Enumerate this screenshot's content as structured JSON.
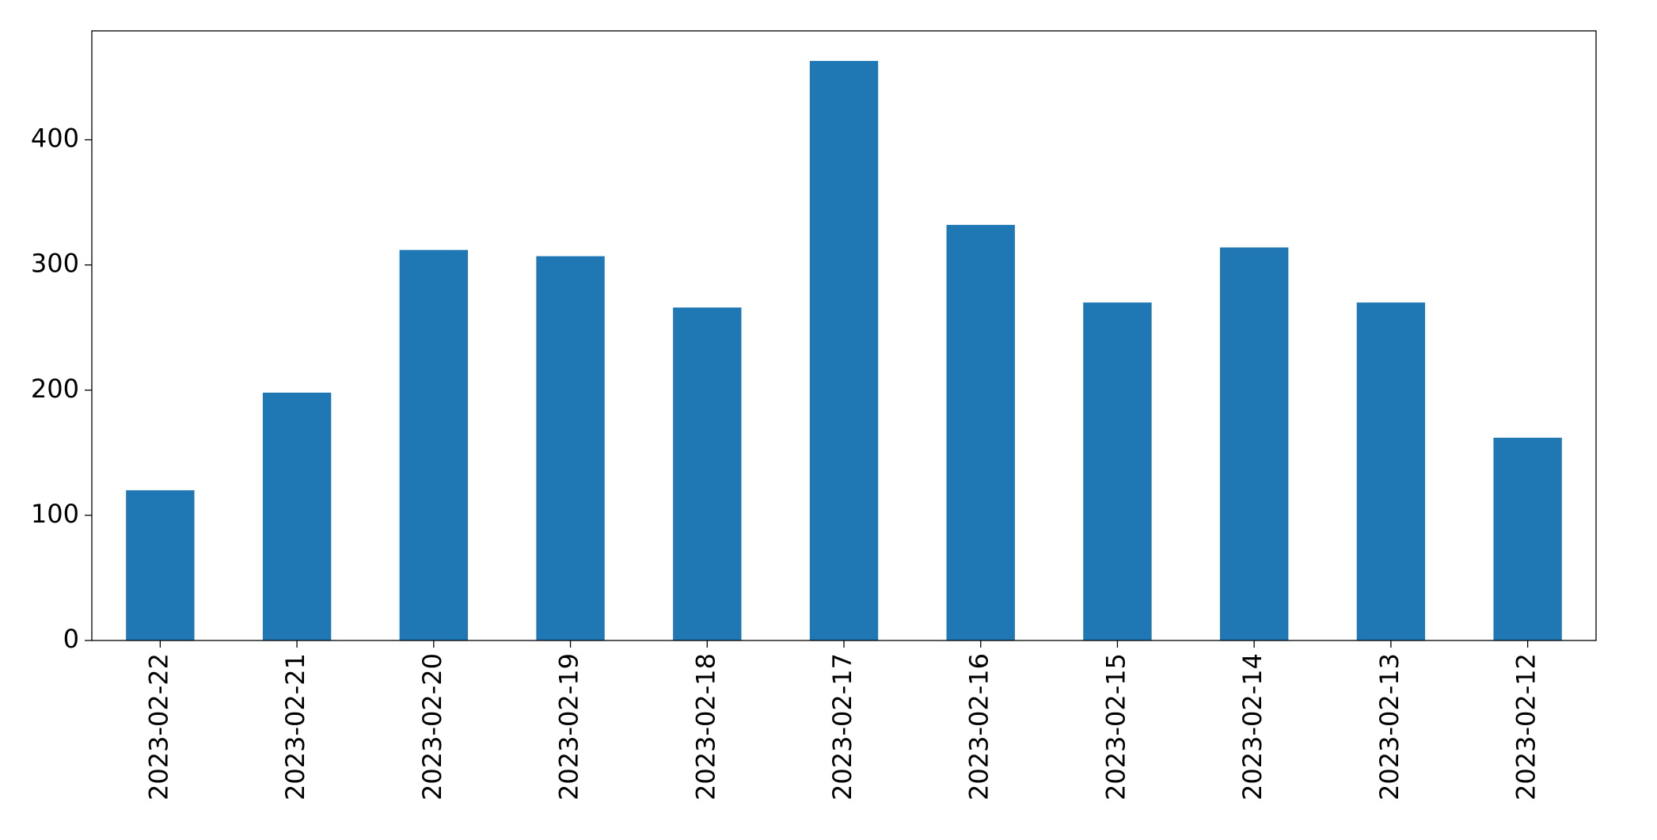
{
  "chart_data": {
    "type": "bar",
    "categories": [
      "2023-02-22",
      "2023-02-21",
      "2023-02-20",
      "2023-02-19",
      "2023-02-18",
      "2023-02-17",
      "2023-02-16",
      "2023-02-15",
      "2023-02-14",
      "2023-02-13",
      "2023-02-12"
    ],
    "values": [
      120,
      198,
      312,
      307,
      266,
      463,
      332,
      270,
      314,
      270,
      162
    ],
    "color": "#1f77b4",
    "ylim": [
      0,
      487
    ],
    "yticks": [
      0,
      100,
      200,
      300,
      400
    ],
    "grid": false
  }
}
